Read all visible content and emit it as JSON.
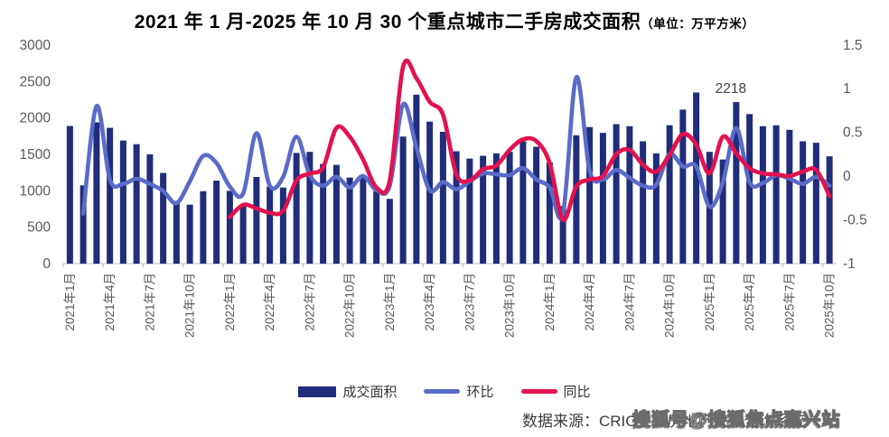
{
  "title": {
    "main": "2021 年 1 月-2025 年 10 月 30 个重点城市二手房成交面积",
    "unit": "（单位：万平方米）"
  },
  "annotation": {
    "label": "2218",
    "month": "2025年3月"
  },
  "legend": {
    "bar_label": "成交面积",
    "mom_label": "环比",
    "yoy_label": "同比"
  },
  "footer": {
    "source": "数据来源：CRIC中国房地产决策咨询系统",
    "watermark": "搜狐号@搜狐焦点嘉兴站"
  },
  "colors": {
    "bar": "#1f2d7a",
    "mom_line": "#5a6bc8",
    "yoy_line": "#e3114d",
    "axis_text": "#595959",
    "axis_line": "#c9c9c9",
    "annotation_text": "#404040"
  },
  "chart_data": {
    "type": "combo-bar-line",
    "title": "2021年1月-2025年10月 30个重点城市二手房成交面积（单位：万平方米）",
    "x_tick_labels": [
      "2021年1月",
      "2021年4月",
      "2021年7月",
      "2021年10月",
      "2022年1月",
      "2022年4月",
      "2022年7月",
      "2022年10月",
      "2023年1月",
      "2023年4月",
      "2023年7月",
      "2023年10月",
      "2024年1月",
      "2024年4月",
      "2024年7月",
      "2024年10月",
      "2025年1月",
      "2025年4月",
      "2025年7月",
      "2025年10月"
    ],
    "x_tick_step": 3,
    "left_axis": {
      "min": 0,
      "max": 3000,
      "ticks": [
        "3000",
        "2500",
        "2000",
        "1500",
        "1000",
        "500",
        "0"
      ]
    },
    "right_axis": {
      "min": -1,
      "max": 1.5,
      "ticks": [
        "1.5",
        "1",
        "0.5",
        "0",
        "-0.5",
        "-1"
      ]
    },
    "grid": false,
    "legend_position": "bottom",
    "months": [
      "2021年1月",
      "2021年2月",
      "2021年3月",
      "2021年4月",
      "2021年5月",
      "2021年6月",
      "2021年7月",
      "2021年8月",
      "2021年9月",
      "2021年10月",
      "2021年11月",
      "2021年12月",
      "2022年1月",
      "2022年2月",
      "2022年3月",
      "2022年4月",
      "2022年5月",
      "2022年6月",
      "2022年7月",
      "2022年8月",
      "2022年9月",
      "2022年10月",
      "2022年11月",
      "2022年12月",
      "2023年1月",
      "2023年2月",
      "2023年3月",
      "2023年4月",
      "2023年5月",
      "2023年6月",
      "2023年7月",
      "2023年8月",
      "2023年9月",
      "2023年10月",
      "2023年11月",
      "2023年12月",
      "2024年1月",
      "2024年2月",
      "2024年3月",
      "2024年4月",
      "2024年5月",
      "2024年6月",
      "2024年7月",
      "2024年8月",
      "2024年9月",
      "2024年10月",
      "2024年11月",
      "2024年12月",
      "2025年1月",
      "2025年2月",
      "2025年3月",
      "2025年4月",
      "2025年5月",
      "2025年6月",
      "2025年7月",
      "2025年8月",
      "2025年9月",
      "2025年10月"
    ],
    "series": [
      {
        "name": "成交面积",
        "type": "bar",
        "axis": "left",
        "values": [
          1890,
          1075,
          1940,
          1865,
          1690,
          1640,
          1500,
          1245,
          860,
          810,
          995,
          1140,
          1000,
          800,
          1190,
          1058,
          1045,
          1520,
          1535,
          1368,
          1356,
          1182,
          1182,
          995,
          890,
          1745,
          2320,
          1950,
          1810,
          1543,
          1443,
          1481,
          1514,
          1535,
          1680,
          1605,
          1390,
          790,
          1763,
          1875,
          1796,
          1916,
          1887,
          1680,
          1514,
          1900,
          2115,
          2350,
          1535,
          1430,
          2218,
          2053,
          1887,
          1900,
          1837,
          1680,
          1660,
          1473
        ]
      },
      {
        "name": "环比",
        "type": "line",
        "axis": "right",
        "values": [
          null,
          -0.43,
          0.8,
          -0.04,
          -0.09,
          -0.03,
          -0.09,
          -0.17,
          -0.31,
          -0.06,
          0.23,
          0.15,
          -0.12,
          -0.2,
          0.49,
          -0.11,
          -0.01,
          0.45,
          0.01,
          -0.11,
          -0.01,
          -0.13,
          0.0,
          -0.16,
          -0.11,
          0.82,
          0.33,
          -0.16,
          -0.07,
          -0.15,
          -0.06,
          0.03,
          0.02,
          0.01,
          0.09,
          -0.04,
          -0.13,
          -0.43,
          1.13,
          0.06,
          -0.04,
          0.07,
          -0.02,
          -0.11,
          -0.1,
          0.25,
          0.11,
          0.11,
          -0.35,
          -0.07,
          0.55,
          -0.07,
          -0.08,
          0.01,
          -0.03,
          -0.09,
          -0.01,
          -0.11
        ]
      },
      {
        "name": "同比",
        "type": "line",
        "axis": "right",
        "values": [
          null,
          null,
          null,
          null,
          null,
          null,
          null,
          null,
          null,
          null,
          null,
          null,
          -0.47,
          -0.33,
          -0.37,
          -0.42,
          -0.4,
          -0.05,
          0.03,
          0.1,
          0.55,
          0.45,
          0.19,
          -0.13,
          -0.05,
          1.25,
          1.12,
          0.85,
          0.7,
          0.02,
          -0.05,
          0.08,
          0.12,
          0.3,
          0.42,
          0.4,
          0.15,
          -0.5,
          -0.12,
          -0.04,
          0.0,
          0.25,
          0.3,
          0.13,
          0.05,
          0.24,
          0.48,
          0.36,
          0.03,
          0.45,
          0.26,
          0.09,
          0.03,
          0.02,
          0.0,
          0.05,
          0.07,
          -0.23
        ]
      }
    ],
    "annotations": [
      {
        "text": "2218",
        "series": "成交面积",
        "index": 50
      }
    ]
  }
}
